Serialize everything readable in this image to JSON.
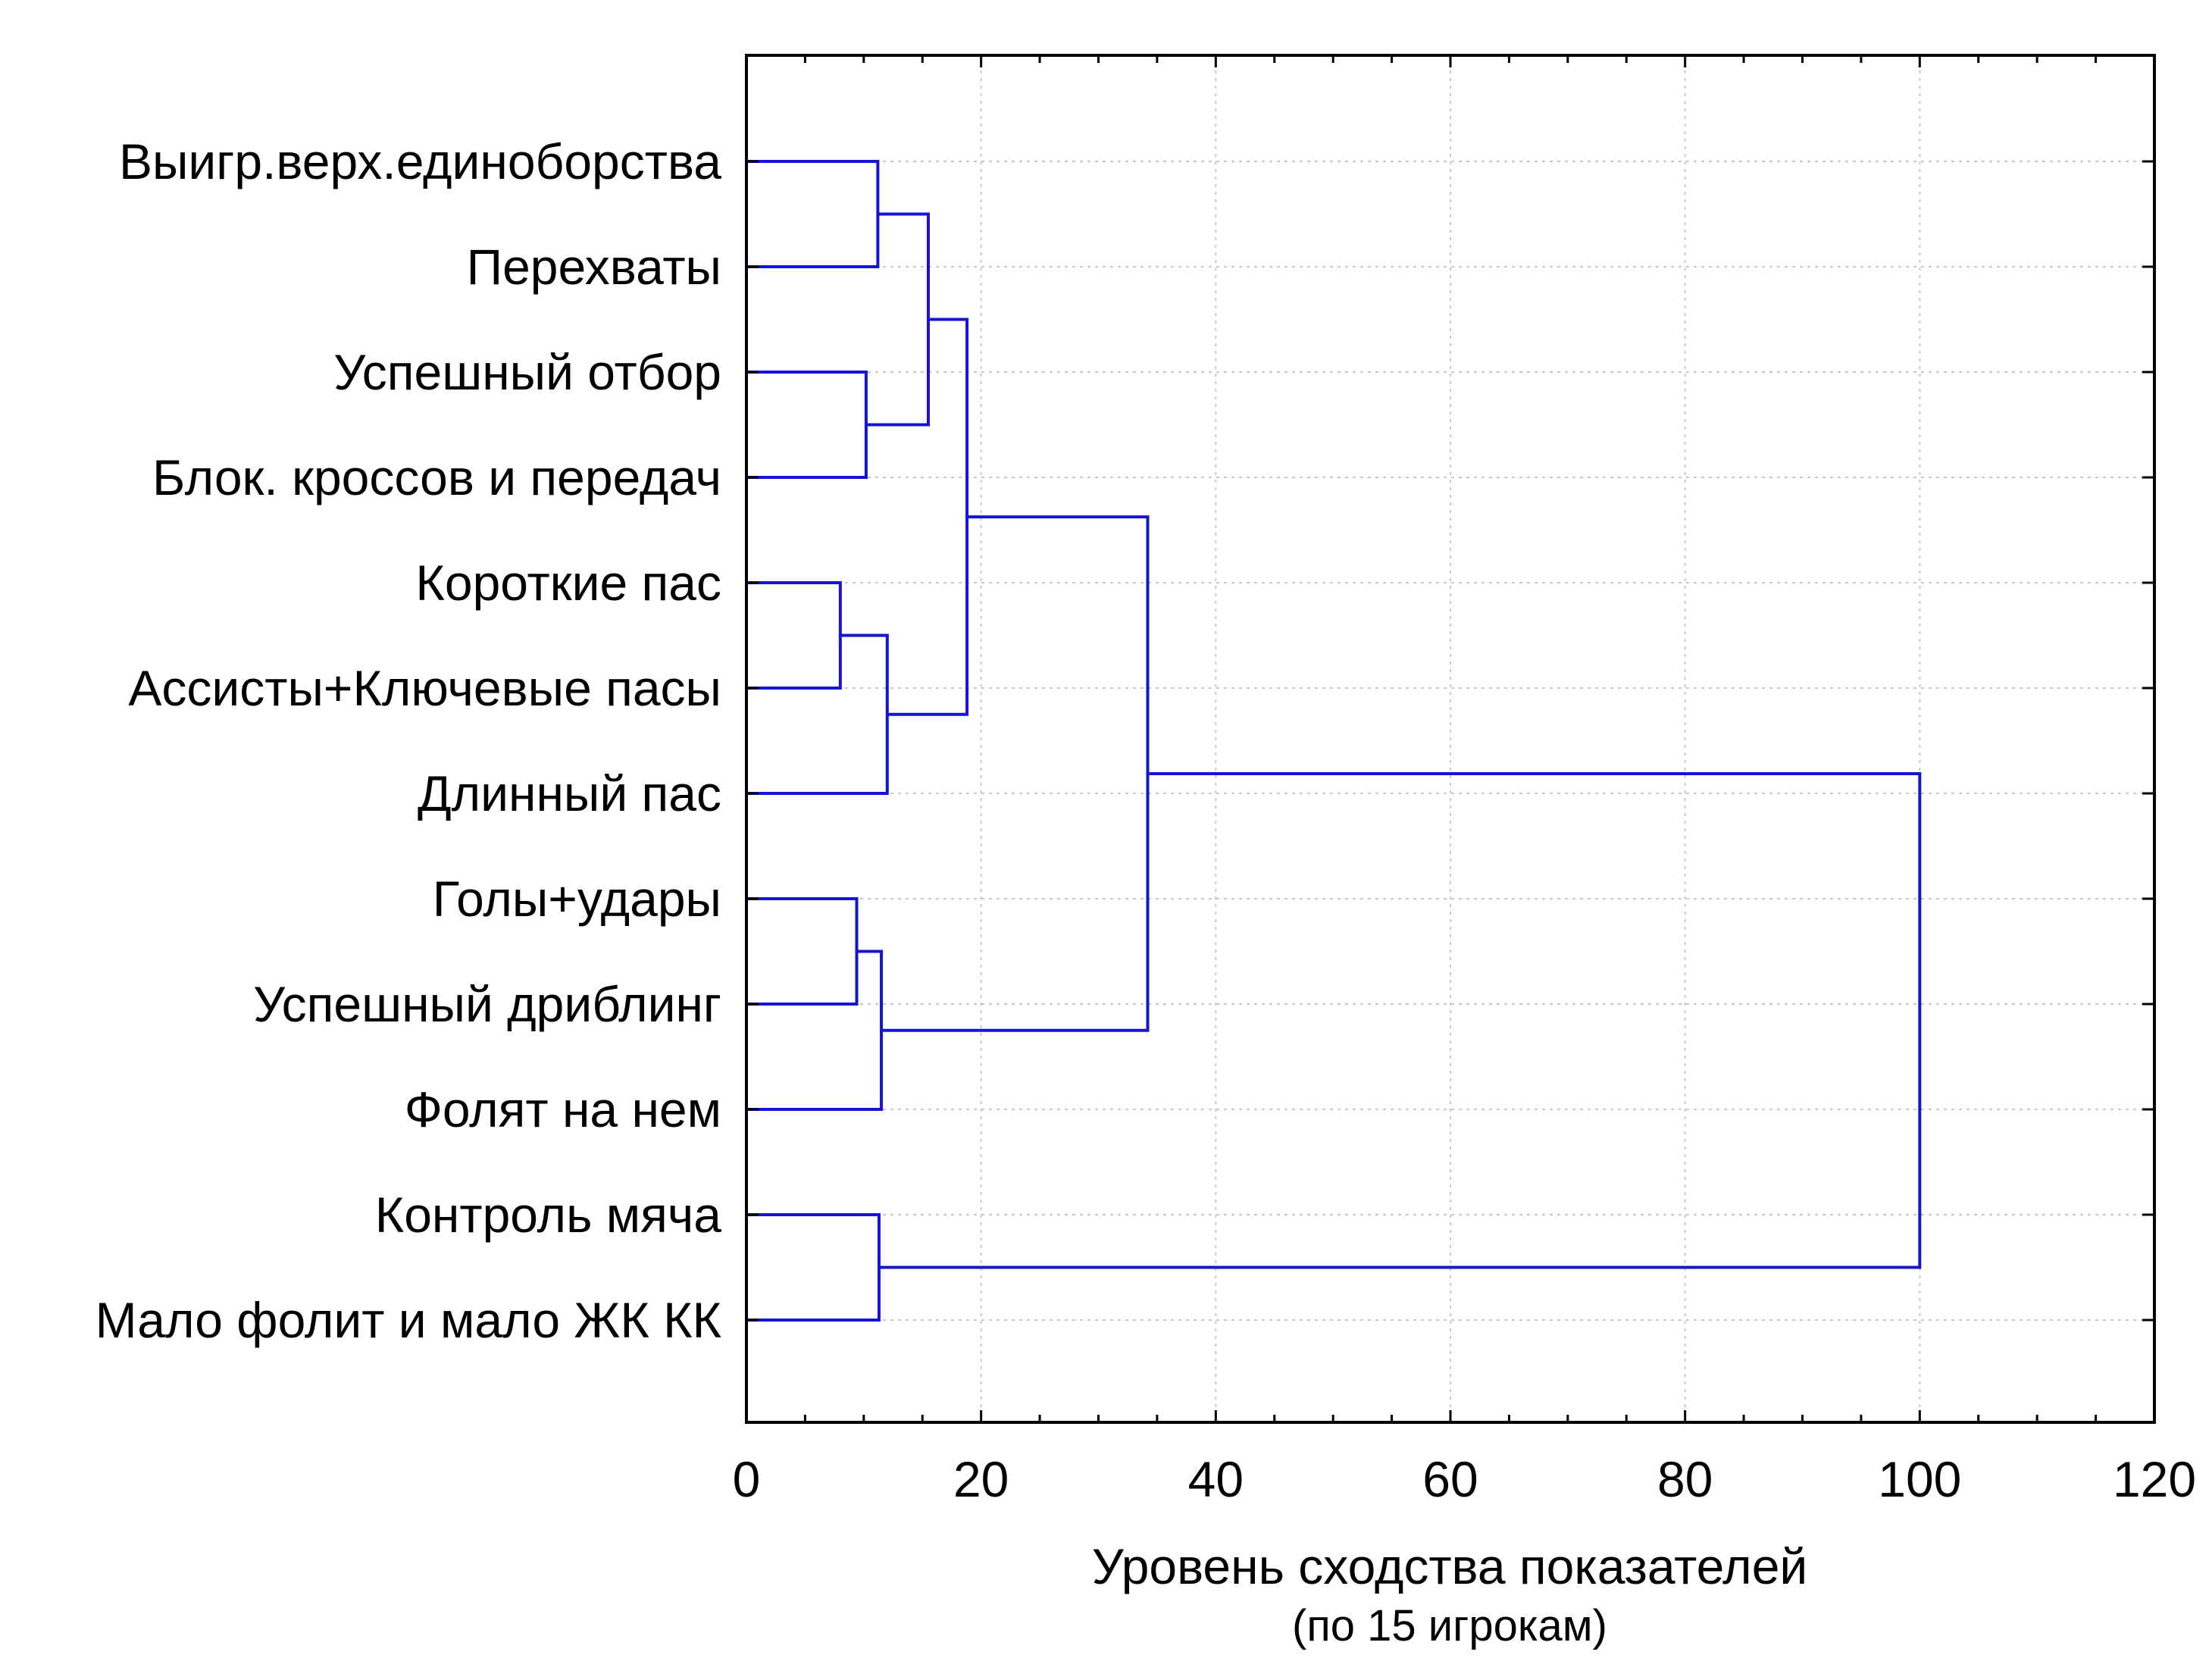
{
  "chart_data": {
    "type": "dendrogram",
    "orientation": "horizontal",
    "xlabel": "Уровень сходства показателей",
    "xlabel_sub": "(по 15 игрокам)",
    "xlim": [
      0,
      120
    ],
    "xticks": [
      0,
      20,
      40,
      60,
      80,
      100,
      120
    ],
    "grid": true,
    "link_color": "#1414d2",
    "leaves": [
      "Выигр.верх.единоборства",
      "Перехваты",
      "Успешный отбор",
      "Блок. кроссов и передач",
      "Короткие пас",
      "Ассисты+Ключевые пасы",
      "Длинный пас",
      "Голы+удары",
      "Успешный дриблинг",
      "Фолят на нем",
      "Контроль мяча",
      "Мало фолит и мало ЖК КК"
    ],
    "merges": [
      {
        "id": "n1",
        "left": 0,
        "right": 1,
        "height": 11.2
      },
      {
        "id": "n2",
        "left": 2,
        "right": 3,
        "height": 10.2
      },
      {
        "id": "n3",
        "left": "n1",
        "right": "n2",
        "height": 15.5
      },
      {
        "id": "n4",
        "left": 4,
        "right": 5,
        "height": 8.0
      },
      {
        "id": "n5",
        "left": "n4",
        "right": 6,
        "height": 12.0
      },
      {
        "id": "n6",
        "left": "n3",
        "right": "n5",
        "height": 18.8
      },
      {
        "id": "n7",
        "left": 7,
        "right": 8,
        "height": 9.4
      },
      {
        "id": "n8",
        "left": "n7",
        "right": 9,
        "height": 11.5
      },
      {
        "id": "n9",
        "left": "n6",
        "right": "n8",
        "height": 34.2
      },
      {
        "id": "n10",
        "left": 10,
        "right": 11,
        "height": 11.3
      },
      {
        "id": "n11",
        "left": "n9",
        "right": "n10",
        "height": 100.0
      }
    ]
  }
}
